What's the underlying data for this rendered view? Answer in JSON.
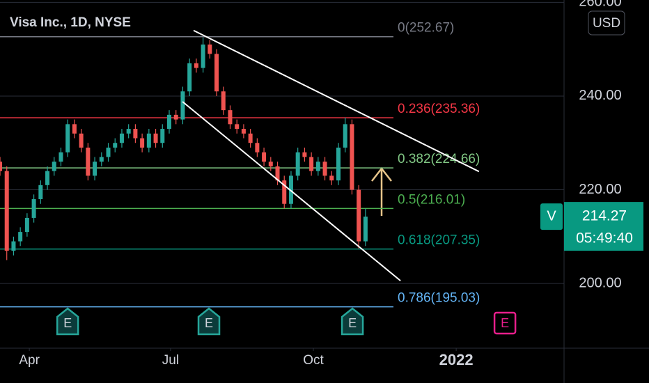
{
  "chart_data": {
    "type": "candlestick",
    "title": "Visa Inc., 1D, NYSE",
    "ticker": "V",
    "currency": "USD",
    "countdown": "05:49:40",
    "up_color": "#26a69a",
    "down_color": "#ef5350",
    "x": [
      0,
      3,
      6,
      9,
      12,
      15,
      18,
      21,
      24,
      27,
      30,
      33,
      36,
      39,
      42,
      45,
      48,
      51,
      54,
      57,
      60,
      63,
      66,
      69,
      72,
      75,
      78,
      81,
      84,
      87,
      90,
      93,
      96,
      99,
      102,
      105,
      108,
      111,
      114,
      117,
      120,
      123,
      126,
      129,
      132,
      135,
      138,
      141,
      144,
      147,
      150,
      153,
      156,
      159,
      162
    ],
    "open": [
      226,
      224,
      207,
      209,
      211,
      214,
      218,
      221,
      224,
      226,
      228,
      234,
      232,
      229,
      223,
      226,
      227,
      229,
      230,
      232,
      233,
      231,
      229,
      232,
      230,
      233,
      236,
      235,
      241,
      247,
      246,
      251,
      249,
      241,
      237,
      234,
      233,
      232,
      230,
      228,
      226,
      225,
      222,
      217,
      223,
      228,
      227,
      224,
      226,
      223,
      222,
      229,
      234,
      220,
      209
    ],
    "high": [
      227,
      225,
      210,
      212,
      215,
      219,
      222,
      225,
      227,
      229,
      235,
      235,
      233,
      230,
      227,
      228,
      230,
      231,
      233,
      234,
      234,
      232,
      233,
      233,
      234,
      237,
      237,
      242,
      248,
      248,
      252.5,
      252,
      250,
      242,
      238,
      235,
      234,
      233,
      231,
      229,
      227,
      226,
      223,
      224,
      229,
      229,
      228,
      227,
      227,
      224,
      230,
      235.4,
      235,
      221,
      216
    ],
    "low": [
      223,
      205,
      206,
      208,
      210,
      213,
      217,
      220,
      223,
      225,
      227,
      231,
      228,
      222,
      222,
      225,
      226,
      228,
      229,
      231,
      230,
      228,
      228,
      229,
      229,
      232,
      234,
      234,
      240,
      245,
      245,
      248,
      240,
      236,
      233,
      232,
      231,
      229,
      227,
      225,
      224,
      221,
      216,
      216,
      222,
      226,
      223,
      223,
      222,
      221,
      221,
      228,
      219,
      207.5,
      208
    ],
    "close": [
      224,
      207,
      209,
      211,
      214,
      218,
      221,
      224,
      226,
      228,
      234,
      232,
      229,
      223,
      226,
      227,
      229,
      230,
      232,
      233,
      231,
      229,
      232,
      230,
      233,
      236,
      235,
      241,
      247,
      246,
      251,
      249,
      241,
      237,
      234,
      233,
      232,
      230,
      228,
      226,
      225,
      222,
      217,
      223,
      228,
      227,
      224,
      226,
      223,
      222,
      229,
      234,
      220,
      209,
      214.27
    ],
    "xlim": [
      0,
      250
    ],
    "xticks": [
      {
        "value": 13,
        "label": "Apr"
      },
      {
        "value": 75.6,
        "label": "Jul"
      },
      {
        "value": 138.9,
        "label": "Oct"
      },
      {
        "value": 202.2,
        "label": "2022"
      }
    ],
    "ylim": [
      186.2,
      260.5
    ],
    "yticks": [
      {
        "value": 260,
        "label": "260.00"
      },
      {
        "value": 240,
        "label": "240.00"
      },
      {
        "value": 220,
        "label": "220.00"
      },
      {
        "value": 200,
        "label": "200.00"
      }
    ],
    "grid": true,
    "fib_levels": [
      {
        "value": 252.67,
        "label": "0(252.67)",
        "color": "#787b86"
      },
      {
        "value": 235.36,
        "label": "0.236(235.36)",
        "color": "#f23645"
      },
      {
        "value": 224.66,
        "label": "0.382(224.66)",
        "color": "#81c784"
      },
      {
        "value": 216.01,
        "label": "0.5(216.01)",
        "color": "#4caf50"
      },
      {
        "value": 207.35,
        "label": "0.618(207.35)",
        "color": "#089981"
      },
      {
        "value": 195.03,
        "label": "0.786(195.03)",
        "color": "#64b5f6"
      }
    ],
    "trendlines": [
      {
        "x": [
          85.8,
          212.3
        ],
        "y": [
          254,
          223.9
        ]
      },
      {
        "x": [
          80.9,
          177.5
        ],
        "y": [
          238.8,
          200.6
        ]
      }
    ],
    "events": {
      "label": "E",
      "x": [
        30,
        92.6,
        156.2,
        223.8
      ]
    }
  }
}
